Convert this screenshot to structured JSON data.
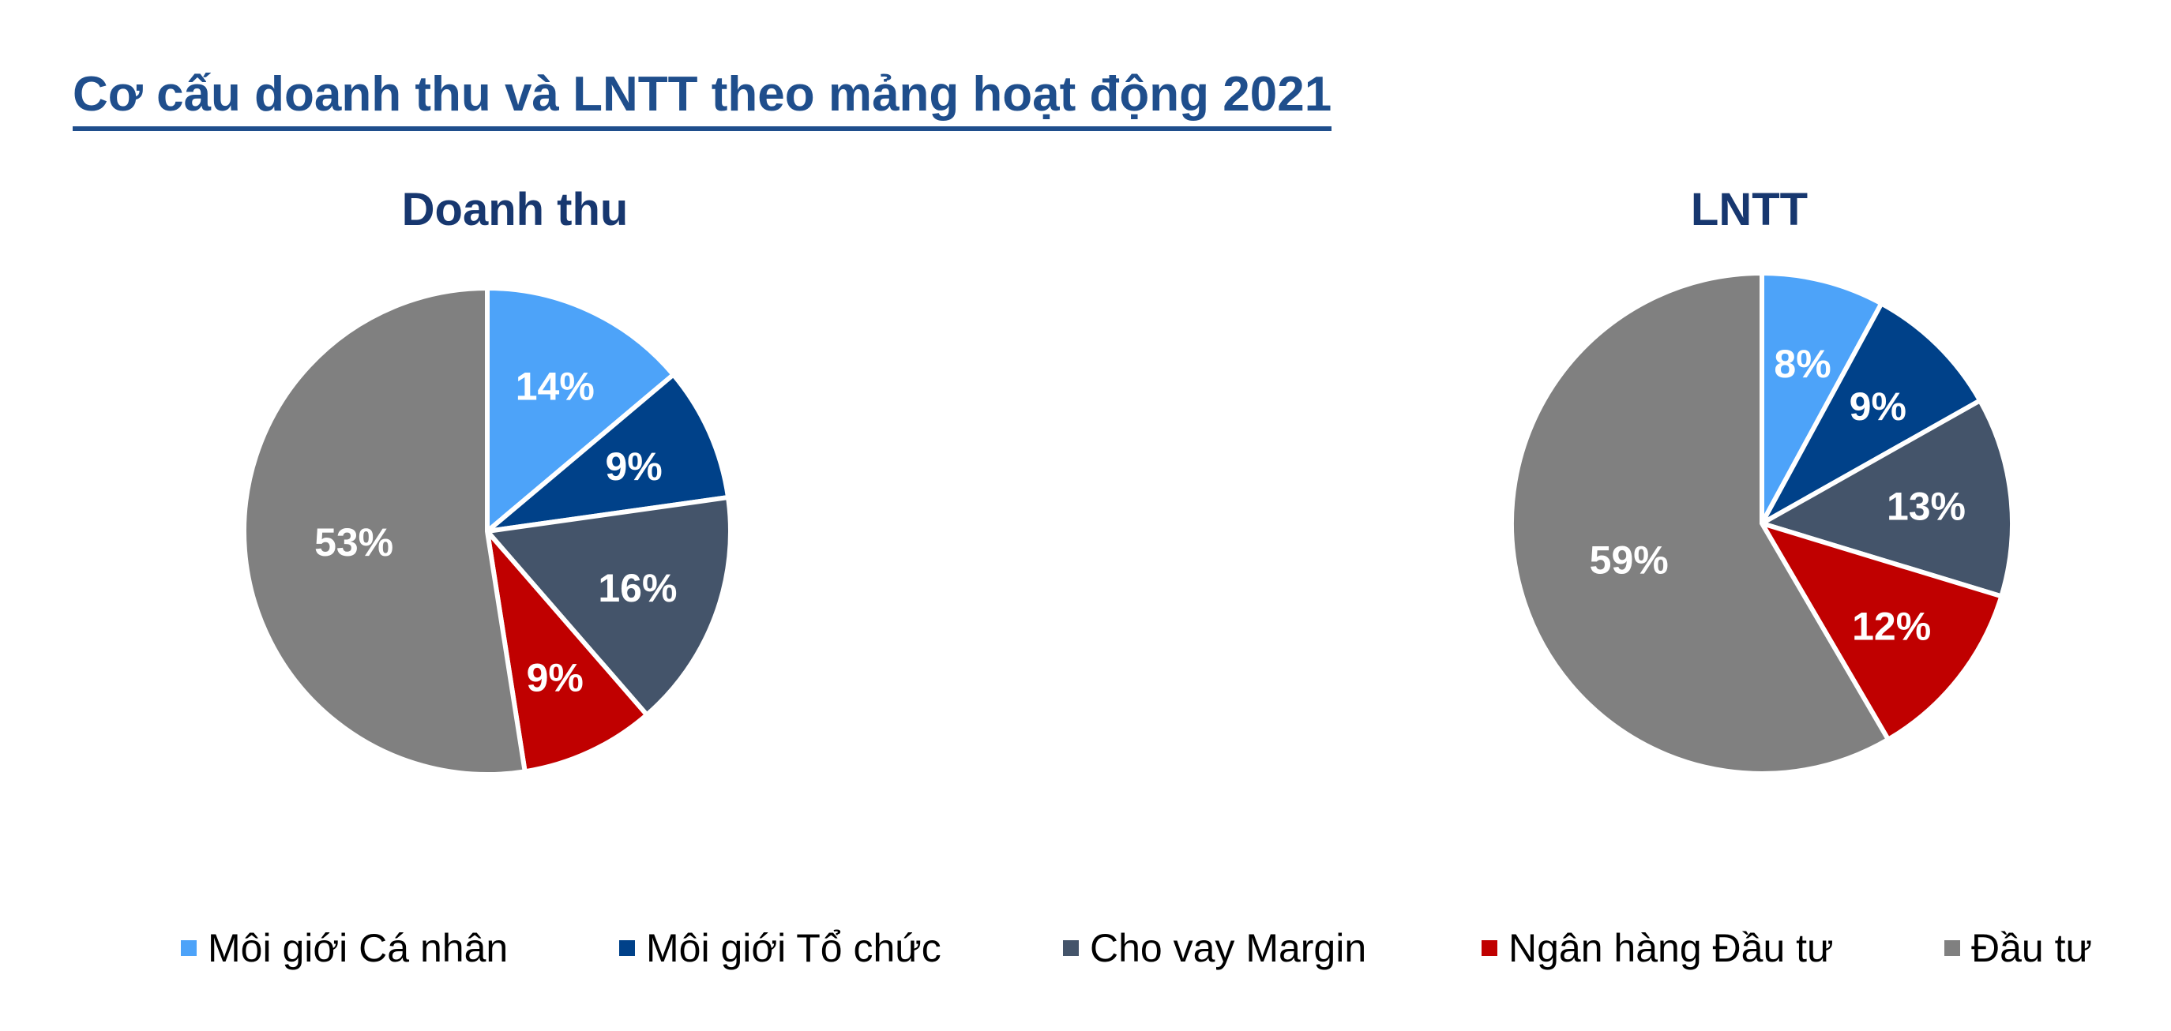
{
  "title": "Cơ cấu doanh thu và LNTT theo mảng hoạt động 2021",
  "legend": [
    "Môi giới Cá nhân",
    "Môi giới Tổ chức",
    "Cho vay Margin",
    "Ngân hàng Đầu tư",
    "Đầu tư"
  ],
  "colors": [
    "#4da3f9",
    "#004189",
    "#44546a",
    "#c00000",
    "#808080"
  ],
  "chart_data": [
    {
      "type": "pie",
      "title": "Doanh thu",
      "categories": [
        "Môi giới Cá nhân",
        "Môi giới Tổ chức",
        "Cho vay Margin",
        "Ngân hàng Đầu tư",
        "Đầu tư"
      ],
      "values": [
        14,
        9,
        16,
        9,
        53
      ],
      "labels": [
        "14%",
        "9%",
        "16%",
        "9%",
        "53%"
      ],
      "legend": "bottom"
    },
    {
      "type": "pie",
      "title": "LNTT",
      "categories": [
        "Môi giới Cá nhân",
        "Môi giới Tổ chức",
        "Cho vay Margin",
        "Ngân hàng Đầu tư",
        "Đầu tư"
      ],
      "values": [
        8,
        9,
        13,
        12,
        59
      ],
      "labels": [
        "8%",
        "9%",
        "13%",
        "12%",
        "59%"
      ],
      "legend": "bottom"
    }
  ]
}
